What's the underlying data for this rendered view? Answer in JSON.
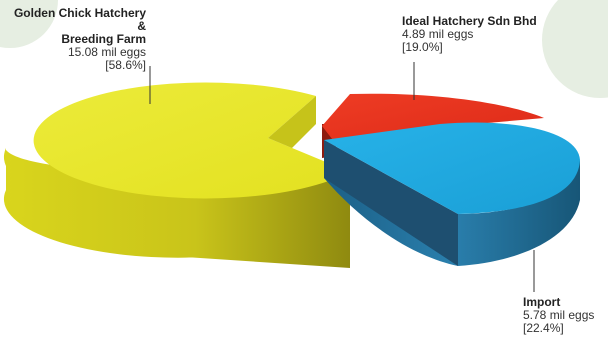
{
  "chart_data": {
    "type": "pie",
    "style": "3d-exploded",
    "slices": [
      {
        "name": "Golden Chick Hatchery & Breeding Farm",
        "name_line1": "Golden Chick Hatchery &",
        "name_line2": "Breeding Farm",
        "value_text": "15.08 mil eggs",
        "percent_text": "[58.6%]",
        "value": 15.08,
        "percent": 58.6,
        "color": "#e8e626"
      },
      {
        "name": "Ideal Hatchery Sdn Bhd",
        "value_text": "4.89 mil eggs",
        "percent_text": "[19.0%]",
        "value": 4.89,
        "percent": 19.0,
        "color": "#e8321e"
      },
      {
        "name": "Import",
        "value_text": "5.78 mil eggs",
        "percent_text": "[22.4%]",
        "value": 5.78,
        "percent": 22.4,
        "color": "#1ea8e0"
      }
    ]
  },
  "colors": {
    "background_circle": "#e6eee2"
  }
}
